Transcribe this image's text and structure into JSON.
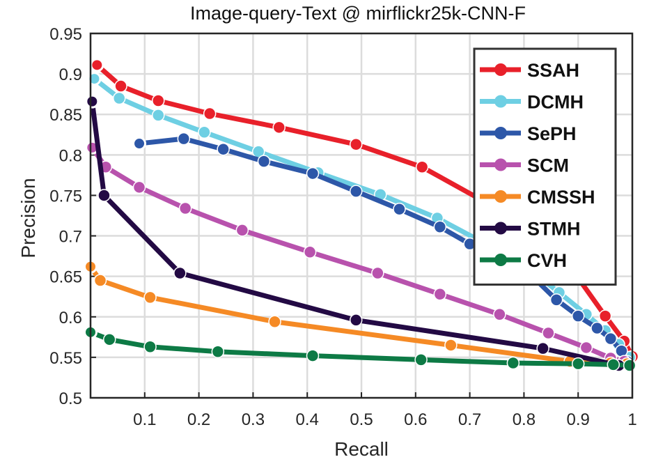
{
  "chart_data": {
    "type": "line",
    "title": "Image-query-Text @ mirflickr25k-CNN-F",
    "xlabel": "Recall",
    "ylabel": "Precision",
    "xlim": [
      0,
      1
    ],
    "ylim": [
      0.5,
      0.95
    ],
    "xticks": [
      0.1,
      0.2,
      0.3,
      0.4,
      0.5,
      0.6,
      0.7,
      0.8,
      0.9,
      1
    ],
    "xtick_labels": [
      "0.1",
      "0.2",
      "0.3",
      "0.4",
      "0.5",
      "0.6",
      "0.7",
      "0.8",
      "0.9",
      "1"
    ],
    "yticks": [
      0.5,
      0.55,
      0.6,
      0.65,
      0.7,
      0.75,
      0.8,
      0.85,
      0.9,
      0.95
    ],
    "ytick_labels": [
      "0.5",
      "0.55",
      "0.6",
      "0.65",
      "0.7",
      "0.75",
      "0.8",
      "0.85",
      "0.9",
      "0.95"
    ],
    "grid": true,
    "legend_position": "top-right",
    "series": [
      {
        "name": "SSAH",
        "color": "#e8202a",
        "points": [
          [
            0.012,
            0.911
          ],
          [
            0.056,
            0.885
          ],
          [
            0.125,
            0.867
          ],
          [
            0.22,
            0.851
          ],
          [
            0.348,
            0.834
          ],
          [
            0.49,
            0.813
          ],
          [
            0.612,
            0.785
          ],
          [
            0.72,
            0.745
          ],
          [
            0.825,
            0.7
          ],
          [
            0.9,
            0.648
          ],
          [
            0.95,
            0.601
          ],
          [
            0.985,
            0.57
          ],
          [
            1.0,
            0.551
          ]
        ]
      },
      {
        "name": "DCMH",
        "color": "#6ecfe3",
        "points": [
          [
            0.007,
            0.894
          ],
          [
            0.053,
            0.87
          ],
          [
            0.125,
            0.849
          ],
          [
            0.21,
            0.828
          ],
          [
            0.31,
            0.804
          ],
          [
            0.42,
            0.778
          ],
          [
            0.535,
            0.751
          ],
          [
            0.64,
            0.722
          ],
          [
            0.73,
            0.69
          ],
          [
            0.81,
            0.659
          ],
          [
            0.865,
            0.63
          ],
          [
            0.915,
            0.603
          ],
          [
            0.95,
            0.583
          ],
          [
            0.975,
            0.566
          ],
          [
            0.995,
            0.55
          ]
        ]
      },
      {
        "name": "SePH",
        "color": "#2d57a8",
        "points": [
          [
            0.09,
            0.814
          ],
          [
            0.172,
            0.82
          ],
          [
            0.245,
            0.807
          ],
          [
            0.32,
            0.792
          ],
          [
            0.41,
            0.777
          ],
          [
            0.49,
            0.755
          ],
          [
            0.57,
            0.733
          ],
          [
            0.645,
            0.711
          ],
          [
            0.7,
            0.69
          ],
          [
            0.77,
            0.67
          ],
          [
            0.82,
            0.647
          ],
          [
            0.86,
            0.621
          ],
          [
            0.9,
            0.601
          ],
          [
            0.935,
            0.586
          ],
          [
            0.96,
            0.573
          ],
          [
            0.98,
            0.558
          ],
          [
            0.99,
            0.545
          ]
        ]
      },
      {
        "name": "SCM",
        "color": "#b852ad",
        "points": [
          [
            0.003,
            0.809
          ],
          [
            0.028,
            0.785
          ],
          [
            0.09,
            0.76
          ],
          [
            0.175,
            0.734
          ],
          [
            0.28,
            0.707
          ],
          [
            0.405,
            0.68
          ],
          [
            0.53,
            0.654
          ],
          [
            0.645,
            0.628
          ],
          [
            0.755,
            0.603
          ],
          [
            0.845,
            0.58
          ],
          [
            0.915,
            0.562
          ],
          [
            0.96,
            0.549
          ],
          [
            0.985,
            0.545
          ]
        ]
      },
      {
        "name": "CMSSH",
        "color": "#f58a25",
        "points": [
          [
            0.0,
            0.662
          ],
          [
            0.018,
            0.645
          ],
          [
            0.11,
            0.624
          ],
          [
            0.34,
            0.594
          ],
          [
            0.665,
            0.565
          ],
          [
            0.885,
            0.545
          ],
          [
            0.96,
            0.543
          ],
          [
            0.99,
            0.542
          ]
        ]
      },
      {
        "name": "STMH",
        "color": "#230a44",
        "points": [
          [
            0.003,
            0.866
          ],
          [
            0.025,
            0.75
          ],
          [
            0.165,
            0.654
          ],
          [
            0.49,
            0.596
          ],
          [
            0.835,
            0.561
          ],
          [
            0.975,
            0.54
          ],
          [
            0.995,
            0.54
          ]
        ]
      },
      {
        "name": "CVH",
        "color": "#0d7a45",
        "points": [
          [
            0.0,
            0.581
          ],
          [
            0.035,
            0.572
          ],
          [
            0.11,
            0.563
          ],
          [
            0.235,
            0.557
          ],
          [
            0.41,
            0.552
          ],
          [
            0.61,
            0.547
          ],
          [
            0.78,
            0.543
          ],
          [
            0.9,
            0.542
          ],
          [
            0.965,
            0.541
          ],
          [
            0.995,
            0.54
          ]
        ]
      }
    ]
  }
}
